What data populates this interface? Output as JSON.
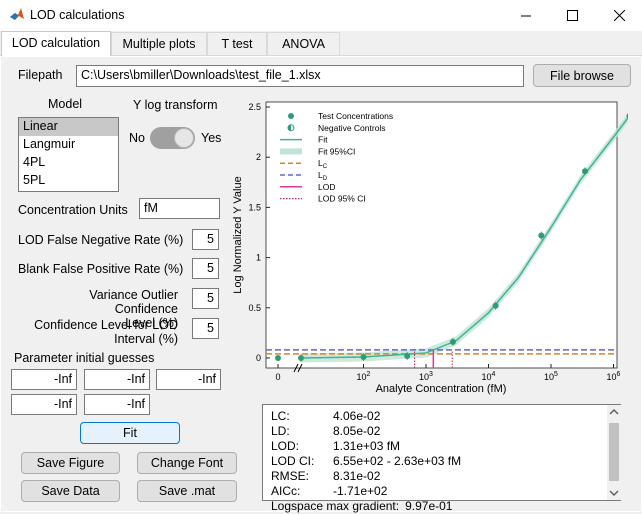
{
  "window": {
    "title": "LOD calculations",
    "controls": {
      "minimize": "minimize-icon",
      "maximize": "maximize-icon",
      "close": "close-icon"
    }
  },
  "tabs": [
    {
      "label": "LOD calculation",
      "active": true
    },
    {
      "label": "Multiple plots",
      "active": false
    },
    {
      "label": "T test",
      "active": false
    },
    {
      "label": "ANOVA",
      "active": false
    }
  ],
  "filepath": {
    "label": "Filepath",
    "value": "C:\\Users\\bmiller\\Downloads\\test_file_1.xlsx",
    "browse_label": "File browse"
  },
  "model": {
    "label": "Model",
    "options": [
      "Linear",
      "Langmuir",
      "4PL",
      "5PL"
    ],
    "selected": "Linear"
  },
  "ylog": {
    "label": "Y log transform",
    "no": "No",
    "yes": "Yes",
    "value": "Yes"
  },
  "units": {
    "label": "Concentration Units",
    "value": "fM"
  },
  "params": [
    {
      "label": "LOD False Negative Rate (%)",
      "value": "5"
    },
    {
      "label": "Blank False Positive Rate (%)",
      "value": "5"
    },
    {
      "label1": "Variance Outlier Confidence",
      "label2": "Level (%)",
      "value": "5"
    },
    {
      "label1": "Confidence Level for LOD",
      "label2": "Interval (%)",
      "value": "5"
    }
  ],
  "initial_guesses": {
    "label": "Parameter initial guesses",
    "values": [
      "-Inf",
      "-Inf",
      "-Inf",
      "-Inf",
      "-Inf"
    ]
  },
  "buttons": {
    "fit": "Fit",
    "save_figure": "Save Figure",
    "change_font": "Change Font",
    "save_data": "Save Data",
    "save_mat": "Save .mat"
  },
  "results": [
    {
      "key": "LC:",
      "value": "4.06e-02"
    },
    {
      "key": "LD:",
      "value": "8.05e-02"
    },
    {
      "key": "LOD:",
      "value": "1.31e+03 fM"
    },
    {
      "key": "LOD CI:",
      "value": "6.55e+02 - 2.63e+03 fM"
    },
    {
      "key": "RMSE:",
      "value": "8.31e-02"
    },
    {
      "key": "AICc:",
      "value": "-1.71e+02"
    },
    {
      "key": "Logspace max gradient:",
      "value": "9.97e-01"
    }
  ],
  "chart_data": {
    "type": "scatter",
    "xlabel": "Analyte Concentration (fM)",
    "ylabel": "Log Normalized Y Value",
    "xscale": "log",
    "ylim": [
      -0.1,
      2.55
    ],
    "yticks": [
      "0",
      "0.5",
      "1",
      "1.5",
      "2",
      "2.5"
    ],
    "xticks": [
      "0",
      "10^2",
      "10^3",
      "10^4",
      "10^5",
      "10^6"
    ],
    "legend_position": "top-left",
    "legend": [
      {
        "label": "Test Concentrations",
        "marker": "filled-circle"
      },
      {
        "label": "Negative Controls",
        "marker": "half-circle"
      },
      {
        "label": "Fit",
        "marker": "line"
      },
      {
        "label": "Fit 95%CI",
        "marker": "band"
      },
      {
        "label": "L",
        "sub": "C",
        "marker": "dashed-orange"
      },
      {
        "label": "L",
        "sub": "D",
        "marker": "dashed-blue"
      },
      {
        "label": "LOD",
        "marker": "line-pink"
      },
      {
        "label": "LOD 95% CI",
        "marker": "dotted-red"
      }
    ],
    "negative_controls": {
      "x": 0,
      "y": 0
    },
    "test_points": [
      {
        "x": 10,
        "y": 0.0
      },
      {
        "x": 100,
        "y": 0.01
      },
      {
        "x": 500,
        "y": 0.02
      },
      {
        "x": 2700,
        "y": 0.16
      },
      {
        "x": 13000,
        "y": 0.52
      },
      {
        "x": 70000,
        "y": 1.22
      },
      {
        "x": 350000,
        "y": 1.86
      },
      {
        "x": 1800000,
        "y": 2.41
      }
    ],
    "fit_curve": [
      {
        "x": 10,
        "y": 0.0
      },
      {
        "x": 100,
        "y": 0.01
      },
      {
        "x": 1000,
        "y": 0.05
      },
      {
        "x": 3000,
        "y": 0.17
      },
      {
        "x": 10000,
        "y": 0.45
      },
      {
        "x": 30000,
        "y": 0.8
      },
      {
        "x": 100000,
        "y": 1.3
      },
      {
        "x": 300000,
        "y": 1.78
      },
      {
        "x": 1000000,
        "y": 2.2
      },
      {
        "x": 2000000,
        "y": 2.45
      }
    ],
    "lc": 0.0406,
    "ld": 0.0805,
    "lod": 1310,
    "lod_ci": [
      655,
      2630
    ],
    "colors": {
      "points": "#2e9e72",
      "fit": "#3fb58e",
      "band": "#bfe4d6",
      "lc": "#d9822b",
      "ld": "#6666cc",
      "lod": "#e0389a",
      "lod_ci": "#c0304a"
    }
  }
}
